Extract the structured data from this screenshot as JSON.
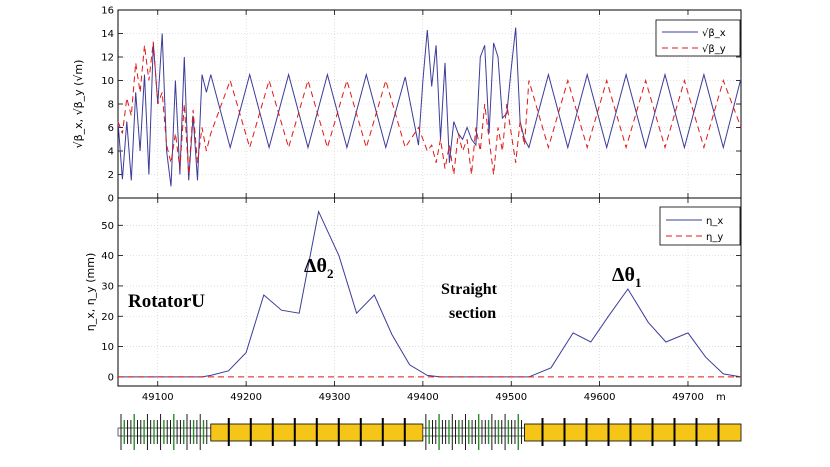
{
  "chart_data": [
    {
      "type": "line",
      "panel": "beta",
      "ylabel": "√β_x, √β_y (√m)",
      "xlim": [
        49055,
        49760
      ],
      "ylim": [
        0,
        16
      ],
      "yticks": [
        0,
        2,
        4,
        6,
        8,
        10,
        12,
        14,
        16
      ],
      "grid": true,
      "legend_position": "top-right",
      "series": [
        {
          "name": "√β_x",
          "color": "#3c3c9a",
          "style": "solid",
          "x": [
            49055,
            49060,
            49065,
            49070,
            49075,
            49080,
            49085,
            49090,
            49095,
            49100,
            49105,
            49110,
            49115,
            49120,
            49125,
            49130,
            49135,
            49140,
            49145,
            49150,
            49155,
            49160,
            49182,
            49204,
            49226,
            49248,
            49270,
            49292,
            49314,
            49336,
            49358,
            49380,
            49395,
            49400,
            49405,
            49410,
            49415,
            49420,
            49425,
            49430,
            49435,
            49440,
            49445,
            49450,
            49455,
            49460,
            49465,
            49470,
            49475,
            49480,
            49485,
            49490,
            49495,
            49500,
            49505,
            49510,
            49515,
            49520,
            49542,
            49564,
            49586,
            49608,
            49630,
            49652,
            49674,
            49696,
            49718,
            49740,
            49760
          ],
          "y": [
            6.5,
            1.6,
            6.5,
            1.5,
            9.0,
            4.0,
            10.5,
            2.0,
            13.2,
            8.0,
            14.0,
            4.0,
            1.0,
            10.0,
            2.0,
            12.0,
            1.5,
            7.0,
            1.5,
            10.5,
            9.0,
            10.5,
            4.3,
            10.5,
            4.3,
            10.5,
            4.3,
            10.5,
            4.3,
            10.5,
            4.3,
            10.3,
            4.5,
            10.0,
            14.3,
            9.5,
            13.0,
            5.0,
            11.5,
            3.0,
            6.5,
            5.5,
            5.0,
            6.0,
            5.0,
            4.5,
            12.0,
            13.0,
            5.5,
            13.2,
            12.0,
            6.8,
            7.2,
            11.0,
            14.5,
            6.5,
            5.0,
            4.3,
            10.5,
            4.3,
            10.5,
            4.3,
            10.5,
            4.3,
            10.5,
            4.3,
            10.5,
            4.3,
            10.2
          ]
        },
        {
          "name": "√β_y",
          "color": "#e01818",
          "style": "dashed",
          "x": [
            49055,
            49060,
            49065,
            49070,
            49075,
            49080,
            49085,
            49090,
            49095,
            49100,
            49105,
            49110,
            49115,
            49120,
            49125,
            49130,
            49135,
            49140,
            49145,
            49150,
            49155,
            49160,
            49182,
            49204,
            49226,
            49248,
            49270,
            49292,
            49314,
            49336,
            49358,
            49380,
            49395,
            49405,
            49410,
            49415,
            49420,
            49425,
            49430,
            49435,
            49440,
            49445,
            49450,
            49455,
            49460,
            49465,
            49470,
            49475,
            49480,
            49485,
            49490,
            49495,
            49500,
            49505,
            49510,
            49515,
            49520,
            49542,
            49564,
            49586,
            49608,
            49630,
            49652,
            49674,
            49696,
            49718,
            49740,
            49760
          ],
          "y": [
            6.5,
            5.5,
            8.5,
            7.0,
            11.5,
            9.0,
            13.0,
            10.0,
            13.3,
            8.0,
            9.0,
            4.5,
            3.0,
            5.5,
            2.5,
            8.0,
            2.0,
            7.5,
            3.0,
            6.0,
            4.0,
            5.5,
            10.0,
            4.3,
            10.0,
            4.3,
            10.0,
            4.3,
            10.0,
            4.3,
            10.0,
            4.3,
            6.0,
            4.0,
            4.5,
            3.0,
            5.0,
            2.5,
            4.5,
            2.0,
            5.5,
            4.0,
            5.0,
            2.0,
            6.0,
            4.0,
            8.0,
            5.0,
            2.0,
            6.0,
            4.0,
            8.0,
            5.5,
            3.0,
            6.5,
            4.5,
            10.0,
            4.3,
            10.0,
            4.3,
            10.0,
            4.3,
            10.0,
            4.3,
            10.0,
            4.3,
            10.0,
            6.0
          ]
        }
      ]
    },
    {
      "type": "line",
      "panel": "dispersion",
      "ylabel": "η_x, η_y (mm)",
      "xlabel": "m",
      "xlim": [
        49055,
        49760
      ],
      "ylim": [
        -3,
        59
      ],
      "yticks": [
        0,
        10,
        20,
        30,
        40,
        50
      ],
      "xticks": [
        49100,
        49200,
        49300,
        49400,
        49500,
        49600,
        49700
      ],
      "grid": true,
      "legend_position": "top-right",
      "series": [
        {
          "name": "η_x",
          "color": "#3c3c9a",
          "style": "solid",
          "x": [
            49055,
            49150,
            49160,
            49180,
            49200,
            49220,
            49240,
            49260,
            49282,
            49305,
            49325,
            49345,
            49365,
            49385,
            49405,
            49420,
            49510,
            49520,
            49545,
            49570,
            49590,
            49610,
            49632,
            49655,
            49675,
            49700,
            49720,
            49740,
            49760
          ],
          "y": [
            0,
            0,
            0.5,
            2,
            8,
            27,
            22,
            21,
            54.5,
            40,
            21,
            27,
            14,
            4,
            0.5,
            0,
            0,
            0,
            3,
            14.5,
            11.5,
            20,
            29,
            18,
            11.5,
            14.5,
            6.5,
            1,
            0
          ]
        },
        {
          "name": "η_y",
          "color": "#e01818",
          "style": "dashed",
          "x": [
            49055,
            49760
          ],
          "y": [
            0,
            0
          ]
        }
      ]
    }
  ],
  "annotations": {
    "rotator": "RotatorU",
    "delta2_main": "Δθ",
    "delta2_sub": "2",
    "straight_line1": "Straight",
    "straight_line2": "section",
    "delta1_main": "Δθ",
    "delta1_sub": "1"
  },
  "lattice": {
    "bar_color": "#f5c518",
    "quad_color": "#2a8a2a",
    "segments": [
      {
        "from": 49055,
        "to": 49160,
        "kind": "dense"
      },
      {
        "from": 49160,
        "to": 49400,
        "kind": "bar"
      },
      {
        "from": 49400,
        "to": 49515,
        "kind": "dense"
      },
      {
        "from": 49515,
        "to": 49760,
        "kind": "bar"
      }
    ]
  }
}
